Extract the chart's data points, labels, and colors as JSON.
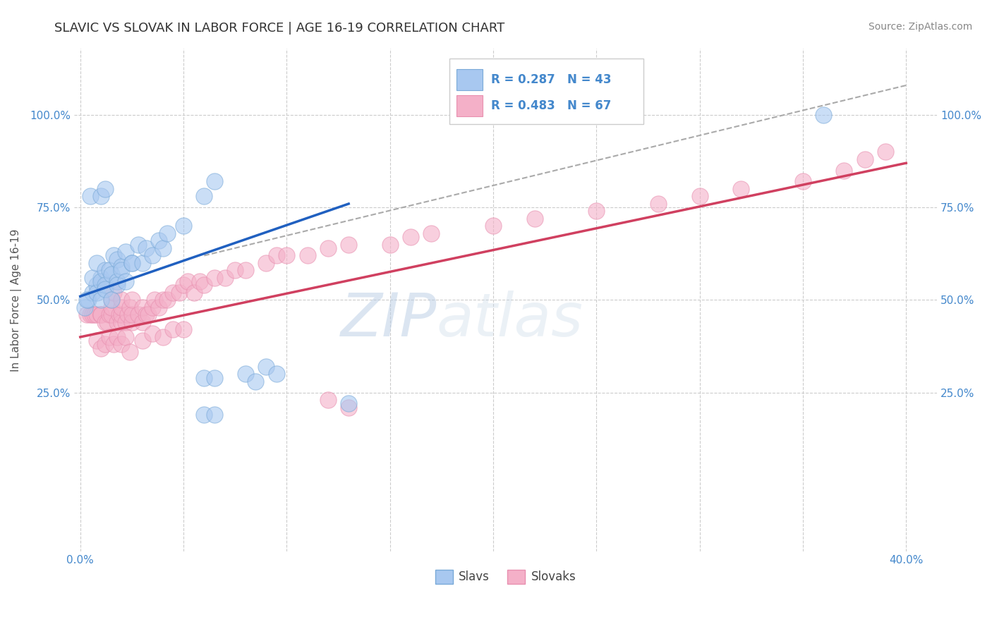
{
  "title": "SLAVIC VS SLOVAK IN LABOR FORCE | AGE 16-19 CORRELATION CHART",
  "source": "Source: ZipAtlas.com",
  "ylabel_label": "In Labor Force | Age 16-19",
  "xlim": [
    -0.003,
    0.415
  ],
  "ylim": [
    -0.18,
    1.18
  ],
  "xticks": [
    0.0,
    0.05,
    0.1,
    0.15,
    0.2,
    0.25,
    0.3,
    0.35,
    0.4
  ],
  "yticks": [
    0.25,
    0.5,
    0.75,
    1.0
  ],
  "xticklabels": [
    "0.0%",
    "",
    "",
    "",
    "",
    "",
    "",
    "",
    "40.0%"
  ],
  "yticklabels_left": [
    "25.0%",
    "50.0%",
    "75.0%",
    "100.0%"
  ],
  "yticklabels_right": [
    "25.0%",
    "50.0%",
    "75.0%",
    "100.0%"
  ],
  "legend_blue_label": "Slavs",
  "legend_pink_label": "Slovaks",
  "blue_R": 0.287,
  "blue_N": 43,
  "pink_R": 0.483,
  "pink_N": 67,
  "blue_color": "#a8c8f0",
  "pink_color": "#f4b0c8",
  "blue_edge_color": "#7aaad8",
  "pink_edge_color": "#e890b0",
  "blue_line_color": "#2060c0",
  "pink_line_color": "#d04060",
  "dashed_line_color": "#aaaaaa",
  "background_color": "#ffffff",
  "grid_color": "#cccccc",
  "title_color": "#333333",
  "tick_color": "#4488cc",
  "source_color": "#888888",
  "watermark_color": "#d0d8e8",
  "slavs_x": [
    0.002,
    0.004,
    0.006,
    0.008,
    0.01,
    0.003,
    0.006,
    0.008,
    0.008,
    0.01,
    0.012,
    0.01,
    0.012,
    0.014,
    0.016,
    0.012,
    0.015,
    0.018,
    0.015,
    0.018,
    0.02,
    0.022,
    0.018,
    0.02,
    0.022,
    0.025,
    0.025,
    0.028,
    0.03,
    0.032,
    0.035,
    0.038,
    0.04,
    0.042,
    0.05,
    0.06,
    0.065,
    0.08,
    0.085,
    0.09,
    0.095,
    0.13,
    0.36
  ],
  "slavs_y": [
    0.48,
    0.5,
    0.52,
    0.54,
    0.56,
    0.5,
    0.56,
    0.6,
    0.52,
    0.55,
    0.58,
    0.5,
    0.54,
    0.58,
    0.62,
    0.53,
    0.57,
    0.61,
    0.5,
    0.55,
    0.59,
    0.63,
    0.54,
    0.58,
    0.55,
    0.6,
    0.6,
    0.65,
    0.6,
    0.64,
    0.62,
    0.66,
    0.64,
    0.68,
    0.7,
    0.78,
    0.82,
    0.3,
    0.28,
    0.32,
    0.3,
    0.22,
    1.0
  ],
  "slavs_outlier_x": [
    0.005,
    0.01,
    0.012,
    0.06,
    0.065,
    0.06,
    0.065
  ],
  "slavs_outlier_y": [
    0.78,
    0.78,
    0.8,
    0.29,
    0.29,
    0.19,
    0.19
  ],
  "slovaks_x": [
    0.003,
    0.005,
    0.006,
    0.007,
    0.008,
    0.01,
    0.01,
    0.01,
    0.012,
    0.013,
    0.014,
    0.015,
    0.015,
    0.015,
    0.016,
    0.018,
    0.019,
    0.02,
    0.02,
    0.02,
    0.02,
    0.022,
    0.023,
    0.024,
    0.025,
    0.025,
    0.025,
    0.028,
    0.03,
    0.03,
    0.032,
    0.033,
    0.035,
    0.036,
    0.038,
    0.04,
    0.042,
    0.045,
    0.048,
    0.05,
    0.052,
    0.055,
    0.058,
    0.06,
    0.065,
    0.07,
    0.075,
    0.08,
    0.09,
    0.095,
    0.1,
    0.11,
    0.12,
    0.13,
    0.15,
    0.16,
    0.17,
    0.2,
    0.22,
    0.25,
    0.28,
    0.3,
    0.32,
    0.35,
    0.37,
    0.38,
    0.39
  ],
  "slovaks_y": [
    0.46,
    0.46,
    0.46,
    0.46,
    0.46,
    0.46,
    0.46,
    0.46,
    0.44,
    0.44,
    0.46,
    0.46,
    0.48,
    0.5,
    0.52,
    0.44,
    0.46,
    0.44,
    0.46,
    0.48,
    0.5,
    0.44,
    0.46,
    0.48,
    0.44,
    0.46,
    0.5,
    0.46,
    0.44,
    0.48,
    0.46,
    0.46,
    0.48,
    0.5,
    0.48,
    0.5,
    0.5,
    0.52,
    0.52,
    0.54,
    0.55,
    0.52,
    0.55,
    0.54,
    0.56,
    0.56,
    0.58,
    0.58,
    0.6,
    0.62,
    0.62,
    0.62,
    0.64,
    0.65,
    0.65,
    0.67,
    0.68,
    0.7,
    0.72,
    0.74,
    0.76,
    0.78,
    0.8,
    0.82,
    0.85,
    0.88,
    0.9
  ],
  "slovaks_low_x": [
    0.008,
    0.01,
    0.012,
    0.014,
    0.016,
    0.018,
    0.02,
    0.022,
    0.024,
    0.03,
    0.035,
    0.04,
    0.045,
    0.05,
    0.12,
    0.13
  ],
  "slovaks_low_y": [
    0.39,
    0.37,
    0.38,
    0.4,
    0.38,
    0.4,
    0.38,
    0.4,
    0.36,
    0.39,
    0.41,
    0.4,
    0.42,
    0.42,
    0.23,
    0.21
  ],
  "blue_line_x": [
    0.0,
    0.13
  ],
  "blue_line_y": [
    0.51,
    0.76
  ],
  "pink_line_x": [
    0.0,
    0.4
  ],
  "pink_line_y": [
    0.4,
    0.87
  ],
  "dash_line_x": [
    0.06,
    0.4
  ],
  "dash_line_y": [
    0.62,
    1.08
  ]
}
